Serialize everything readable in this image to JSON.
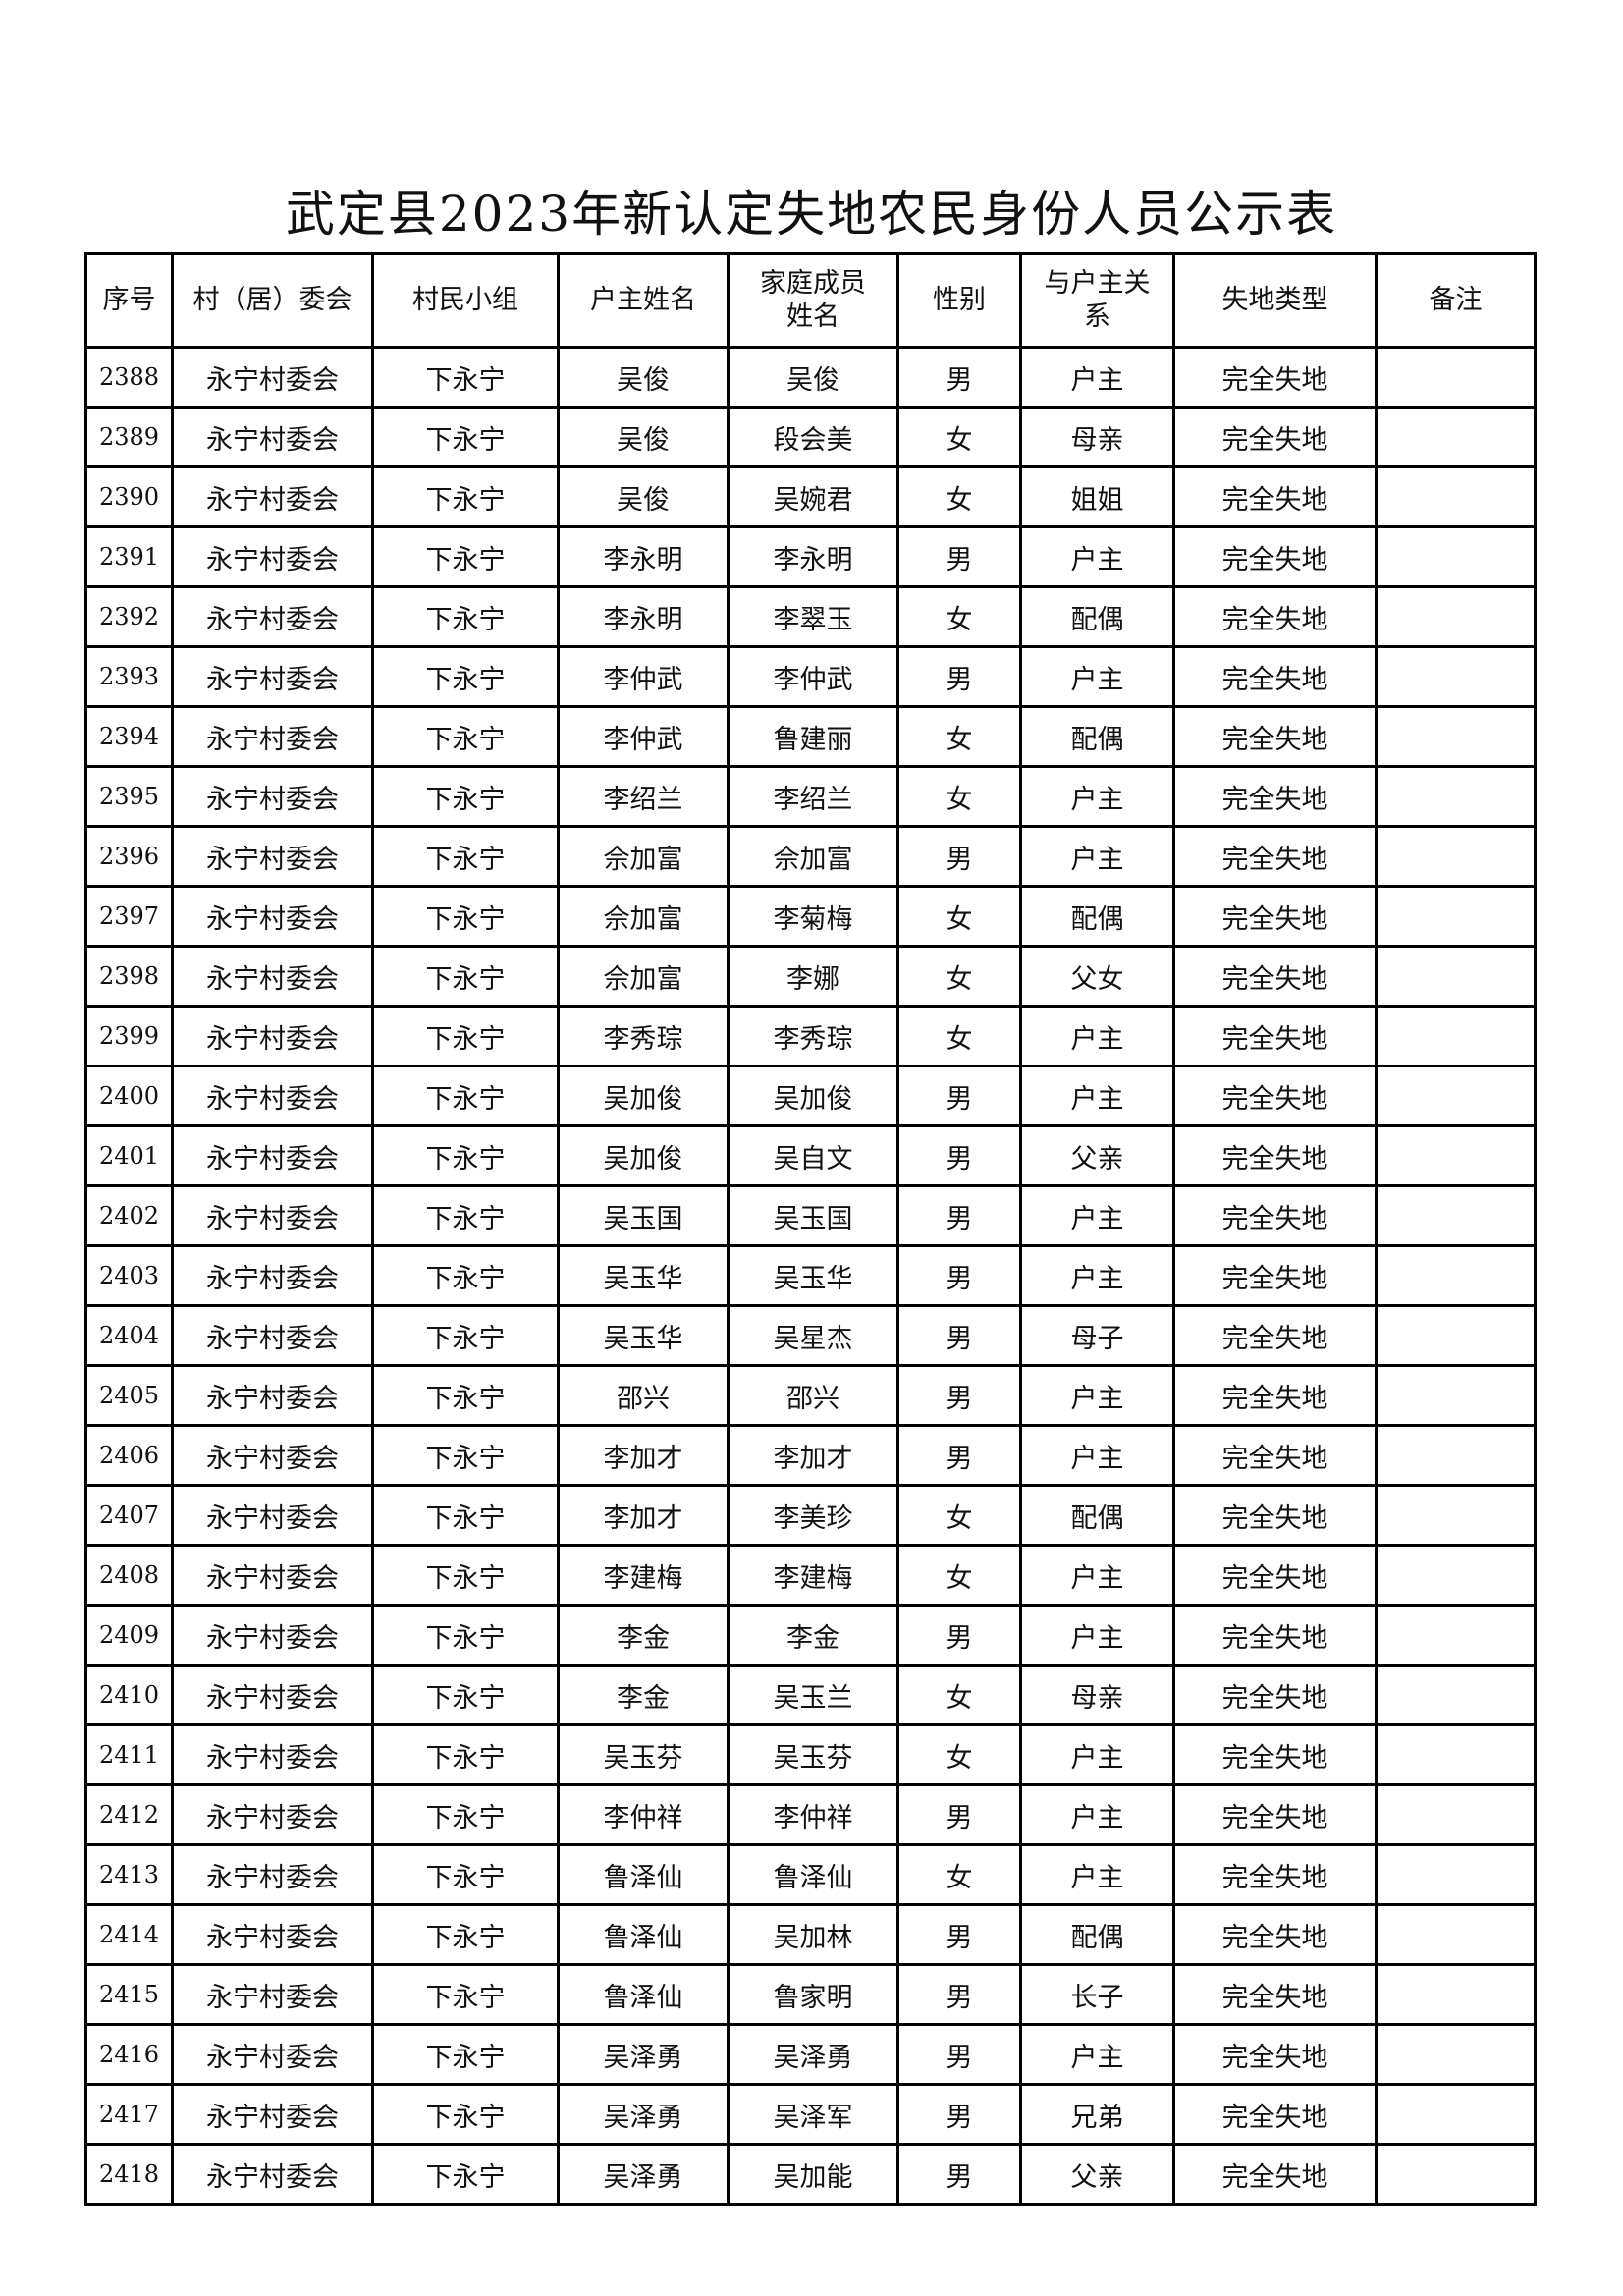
{
  "title": "武定县2023年新认定失地农民身份人员公示表",
  "headers": [
    "序号",
    "村（居）委会",
    "村民小组",
    "户主姓名",
    "家庭成员姓名",
    "性别",
    "与户主关系",
    "失地类型",
    "备注"
  ],
  "rows": [
    [
      "2388",
      "永宁村委会",
      "下永宁",
      "吴俊",
      "吴俊",
      "男",
      "户主",
      "完全失地",
      ""
    ],
    [
      "2389",
      "永宁村委会",
      "下永宁",
      "吴俊",
      "段会美",
      "女",
      "母亲",
      "完全失地",
      ""
    ],
    [
      "2390",
      "永宁村委会",
      "下永宁",
      "吴俊",
      "吴婉君",
      "女",
      "姐姐",
      "完全失地",
      ""
    ],
    [
      "2391",
      "永宁村委会",
      "下永宁",
      "李永明",
      "李永明",
      "男",
      "户主",
      "完全失地",
      ""
    ],
    [
      "2392",
      "永宁村委会",
      "下永宁",
      "李永明",
      "李翠玉",
      "女",
      "配偶",
      "完全失地",
      ""
    ],
    [
      "2393",
      "永宁村委会",
      "下永宁",
      "李仲武",
      "李仲武",
      "男",
      "户主",
      "完全失地",
      ""
    ],
    [
      "2394",
      "永宁村委会",
      "下永宁",
      "李仲武",
      "鲁建丽",
      "女",
      "配偶",
      "完全失地",
      ""
    ],
    [
      "2395",
      "永宁村委会",
      "下永宁",
      "李绍兰",
      "李绍兰",
      "女",
      "户主",
      "完全失地",
      ""
    ],
    [
      "2396",
      "永宁村委会",
      "下永宁",
      "佘加富",
      "佘加富",
      "男",
      "户主",
      "完全失地",
      ""
    ],
    [
      "2397",
      "永宁村委会",
      "下永宁",
      "佘加富",
      "李菊梅",
      "女",
      "配偶",
      "完全失地",
      ""
    ],
    [
      "2398",
      "永宁村委会",
      "下永宁",
      "佘加富",
      "李娜",
      "女",
      "父女",
      "完全失地",
      ""
    ],
    [
      "2399",
      "永宁村委会",
      "下永宁",
      "李秀琮",
      "李秀琮",
      "女",
      "户主",
      "完全失地",
      ""
    ],
    [
      "2400",
      "永宁村委会",
      "下永宁",
      "吴加俊",
      "吴加俊",
      "男",
      "户主",
      "完全失地",
      ""
    ],
    [
      "2401",
      "永宁村委会",
      "下永宁",
      "吴加俊",
      "吴自文",
      "男",
      "父亲",
      "完全失地",
      ""
    ],
    [
      "2402",
      "永宁村委会",
      "下永宁",
      "吴玉国",
      "吴玉国",
      "男",
      "户主",
      "完全失地",
      ""
    ],
    [
      "2403",
      "永宁村委会",
      "下永宁",
      "吴玉华",
      "吴玉华",
      "男",
      "户主",
      "完全失地",
      ""
    ],
    [
      "2404",
      "永宁村委会",
      "下永宁",
      "吴玉华",
      "吴星杰",
      "男",
      "母子",
      "完全失地",
      ""
    ],
    [
      "2405",
      "永宁村委会",
      "下永宁",
      "邵兴",
      "邵兴",
      "男",
      "户主",
      "完全失地",
      ""
    ],
    [
      "2406",
      "永宁村委会",
      "下永宁",
      "李加才",
      "李加才",
      "男",
      "户主",
      "完全失地",
      ""
    ],
    [
      "2407",
      "永宁村委会",
      "下永宁",
      "李加才",
      "李美珍",
      "女",
      "配偶",
      "完全失地",
      ""
    ],
    [
      "2408",
      "永宁村委会",
      "下永宁",
      "李建梅",
      "李建梅",
      "女",
      "户主",
      "完全失地",
      ""
    ],
    [
      "2409",
      "永宁村委会",
      "下永宁",
      "李金",
      "李金",
      "男",
      "户主",
      "完全失地",
      ""
    ],
    [
      "2410",
      "永宁村委会",
      "下永宁",
      "李金",
      "吴玉兰",
      "女",
      "母亲",
      "完全失地",
      ""
    ],
    [
      "2411",
      "永宁村委会",
      "下永宁",
      "吴玉芬",
      "吴玉芬",
      "女",
      "户主",
      "完全失地",
      ""
    ],
    [
      "2412",
      "永宁村委会",
      "下永宁",
      "李仲祥",
      "李仲祥",
      "男",
      "户主",
      "完全失地",
      ""
    ],
    [
      "2413",
      "永宁村委会",
      "下永宁",
      "鲁泽仙",
      "鲁泽仙",
      "女",
      "户主",
      "完全失地",
      ""
    ],
    [
      "2414",
      "永宁村委会",
      "下永宁",
      "鲁泽仙",
      "吴加林",
      "男",
      "配偶",
      "完全失地",
      ""
    ],
    [
      "2415",
      "永宁村委会",
      "下永宁",
      "鲁泽仙",
      "鲁家明",
      "男",
      "长子",
      "完全失地",
      ""
    ],
    [
      "2416",
      "永宁村委会",
      "下永宁",
      "吴泽勇",
      "吴泽勇",
      "男",
      "户主",
      "完全失地",
      ""
    ],
    [
      "2417",
      "永宁村委会",
      "下永宁",
      "吴泽勇",
      "吴泽军",
      "男",
      "兄弟",
      "完全失地",
      ""
    ],
    [
      "2418",
      "永宁村委会",
      "下永宁",
      "吴泽勇",
      "吴加能",
      "男",
      "父亲",
      "完全失地",
      ""
    ]
  ]
}
